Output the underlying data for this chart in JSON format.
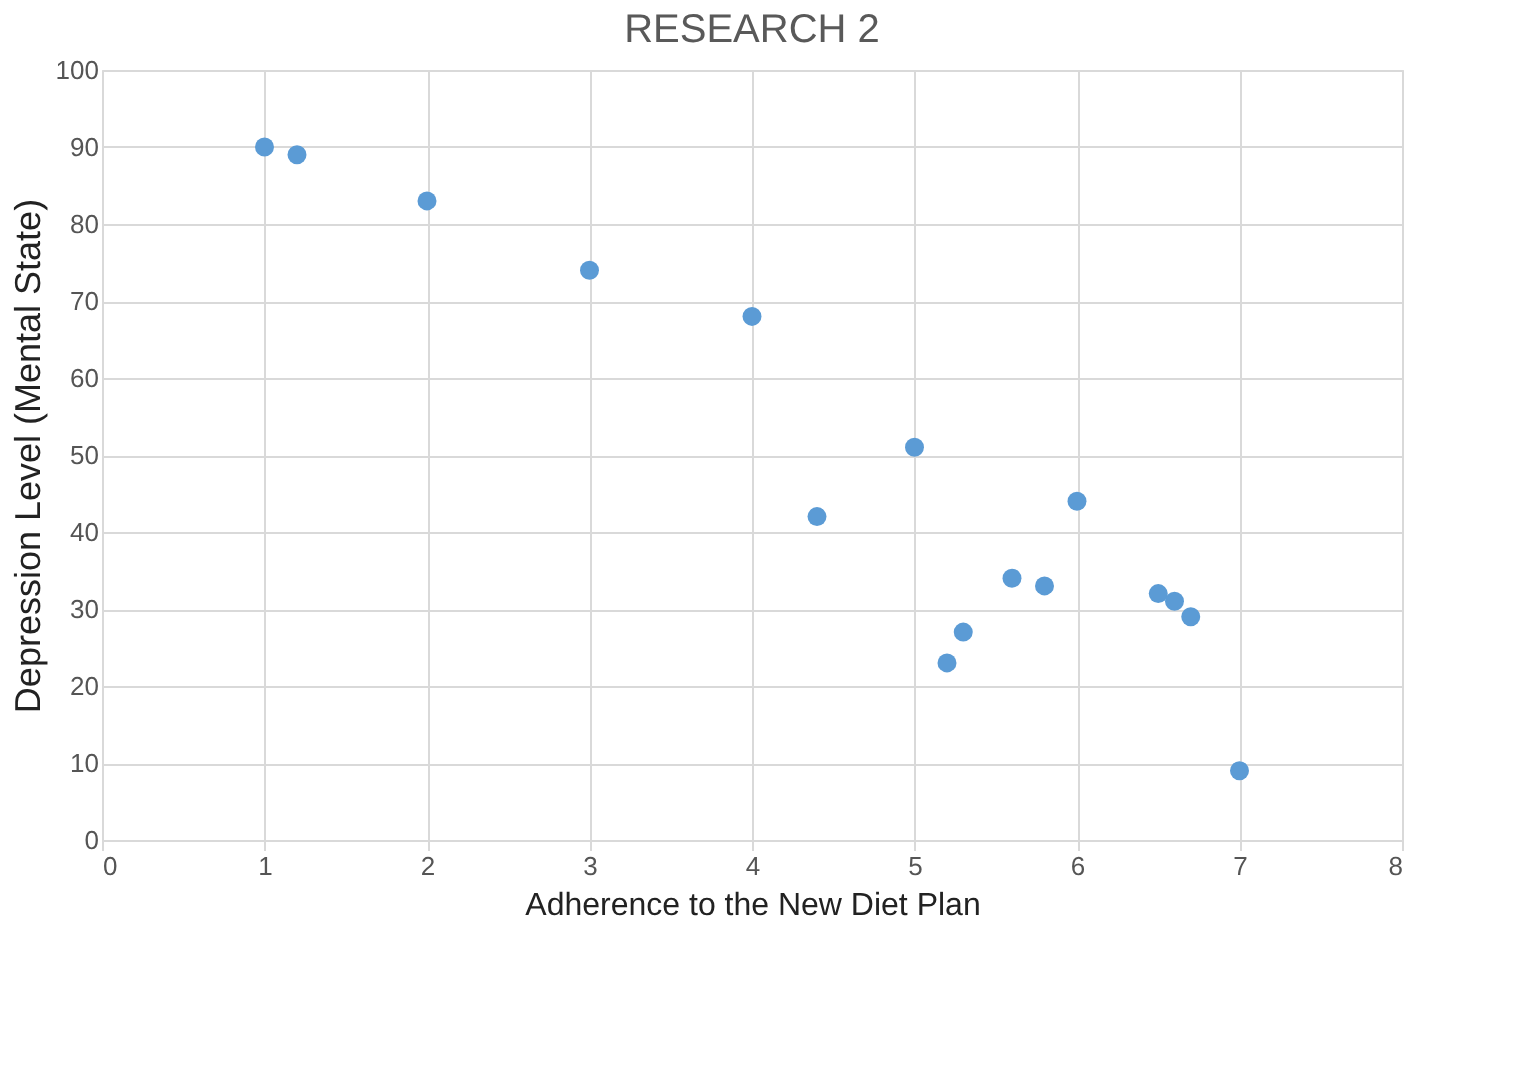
{
  "chart_data": {
    "type": "scatter",
    "title": "RESEARCH 2",
    "xlabel": "Adherence to the New Diet Plan",
    "ylabel": "Depression Level (Mental State)",
    "x": [
      1,
      1.2,
      2,
      3,
      4,
      4.4,
      5,
      5.2,
      5.3,
      5.6,
      5.8,
      6,
      6.5,
      6.6,
      6.7,
      7
    ],
    "series": [
      {
        "color": "#5b9bd5",
        "values": [
          90,
          89,
          83,
          74,
          68,
          42,
          51,
          23,
          27,
          34,
          33,
          44,
          32,
          31,
          29,
          9
        ]
      }
    ],
    "xlim": [
      0,
      8
    ],
    "xticks": [
      0,
      1,
      2,
      3,
      4,
      5,
      6,
      7,
      8
    ],
    "ylim": [
      0,
      100
    ],
    "yticks": [
      0,
      10,
      20,
      30,
      40,
      50,
      60,
      70,
      80,
      90,
      100
    ],
    "grid": true,
    "marker": "circle"
  }
}
